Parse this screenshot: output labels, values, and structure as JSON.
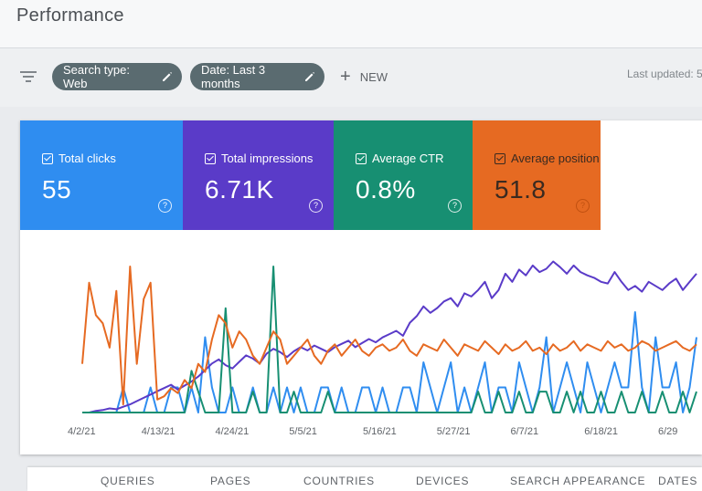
{
  "header": {
    "title": "Performance"
  },
  "filters": {
    "search_type": "Search type: Web",
    "date": "Date: Last 3 months",
    "new_label": "NEW",
    "last_updated": "Last updated: 5"
  },
  "metrics": [
    {
      "label": "Total clicks",
      "value": "55",
      "color": "#2f8df0"
    },
    {
      "label": "Total impressions",
      "value": "6.71K",
      "color": "#5a3bc8"
    },
    {
      "label": "Average CTR",
      "value": "0.8%",
      "color": "#178f72"
    },
    {
      "label": "Average position",
      "value": "51.8",
      "color": "#e66a22"
    }
  ],
  "chart_data": {
    "type": "line",
    "x_labels": [
      "4/2/21",
      "4/13/21",
      "4/24/21",
      "5/5/21",
      "5/16/21",
      "5/27/21",
      "6/7/21",
      "6/18/21",
      "6/29"
    ],
    "grid": false,
    "legend": "none",
    "series": [
      {
        "metric": "Total clicks",
        "color": "#2f8df0",
        "values": [
          0,
          0,
          0,
          0,
          0,
          0,
          1,
          0,
          0,
          0,
          1,
          0,
          0,
          1,
          1,
          0,
          1,
          0,
          3,
          1,
          0,
          0,
          1,
          0,
          0,
          1,
          0,
          0,
          1,
          0,
          1,
          0,
          1,
          0,
          0,
          1,
          1,
          0,
          1,
          0,
          0,
          1,
          1,
          0,
          1,
          0,
          0,
          1,
          1,
          0,
          2,
          1,
          0,
          1,
          2,
          0,
          1,
          0,
          1,
          2,
          0,
          1,
          1,
          0,
          2,
          1,
          0,
          1,
          3,
          0,
          1,
          2,
          1,
          0,
          2,
          1,
          0,
          1,
          2,
          1,
          1,
          4,
          1,
          0,
          3,
          1,
          1,
          2,
          0,
          1,
          3
        ]
      },
      {
        "metric": "Total impressions",
        "color": "#5a3bc8",
        "values": [
          0,
          0,
          2,
          3,
          5,
          4,
          7,
          10,
          14,
          18,
          22,
          26,
          30,
          34,
          28,
          33,
          38,
          44,
          52,
          60,
          65,
          58,
          54,
          62,
          70,
          66,
          60,
          72,
          78,
          74,
          68,
          75,
          80,
          76,
          82,
          78,
          74,
          80,
          84,
          88,
          80,
          85,
          90,
          86,
          92,
          96,
          100,
          94,
          110,
          118,
          130,
          122,
          128,
          136,
          140,
          130,
          146,
          142,
          150,
          160,
          140,
          150,
          170,
          160,
          175,
          168,
          180,
          172,
          176,
          185,
          178,
          170,
          180,
          172,
          168,
          165,
          160,
          158,
          172,
          160,
          150,
          155,
          148,
          160,
          155,
          150,
          158,
          164,
          150,
          160,
          170
        ]
      },
      {
        "metric": "Average CTR",
        "color": "#178f72",
        "values": [
          0,
          0,
          0,
          0,
          0,
          0,
          0,
          0,
          0,
          0,
          0,
          0,
          0,
          0,
          0,
          0,
          2,
          1,
          0,
          0,
          0,
          5,
          0,
          0,
          0,
          1,
          0,
          0,
          7,
          0,
          0,
          1,
          0,
          0,
          0,
          0,
          1,
          0,
          0,
          0,
          0,
          0,
          0,
          0,
          0,
          0,
          0,
          0,
          0,
          0,
          0,
          0,
          0,
          0,
          0,
          0,
          0,
          0,
          1,
          0,
          0,
          1,
          0,
          0,
          1,
          0,
          0,
          1,
          1,
          0,
          0,
          1,
          0,
          1,
          0,
          0,
          1,
          0,
          0,
          1,
          0,
          0,
          1,
          0,
          0,
          1,
          0,
          0,
          1,
          0,
          1
        ]
      },
      {
        "metric": "Average position",
        "color": "#e66a22",
        "values": [
          30,
          80,
          60,
          55,
          40,
          75,
          5,
          90,
          30,
          70,
          80,
          8,
          10,
          15,
          12,
          20,
          15,
          30,
          25,
          45,
          60,
          55,
          40,
          50,
          45,
          35,
          30,
          40,
          50,
          45,
          30,
          35,
          40,
          45,
          35,
          30,
          38,
          42,
          35,
          40,
          45,
          38,
          35,
          40,
          42,
          38,
          40,
          45,
          38,
          35,
          42,
          40,
          38,
          45,
          40,
          35,
          42,
          40,
          38,
          44,
          40,
          36,
          42,
          38,
          40,
          44,
          38,
          40,
          36,
          42,
          38,
          40,
          44,
          38,
          42,
          40,
          38,
          44,
          40,
          42,
          38,
          40,
          44,
          42,
          38,
          40,
          42,
          44,
          40,
          38,
          42
        ]
      }
    ]
  },
  "tabs": [
    "QUERIES",
    "PAGES",
    "COUNTRIES",
    "DEVICES",
    "SEARCH APPEARANCE",
    "DATES"
  ]
}
